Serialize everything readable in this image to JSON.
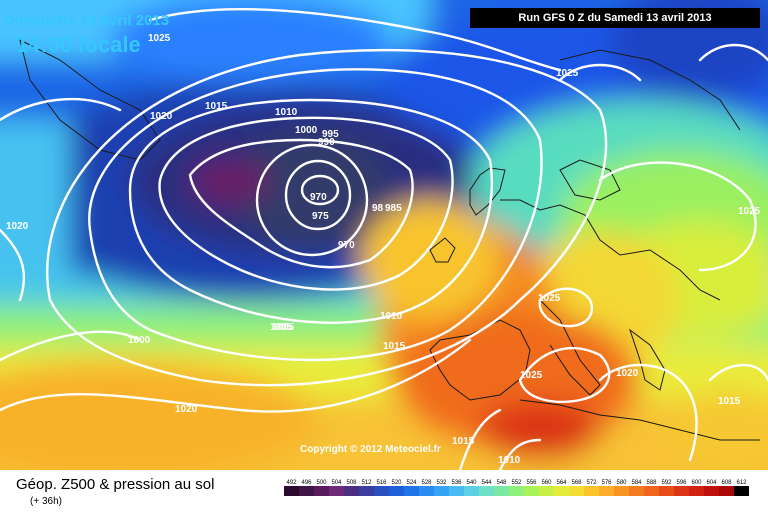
{
  "header": {
    "date": "Dimanche 14 avril 2013",
    "time": "14:00 locale",
    "run": "Run GFS 0 Z du Samedi 13 avril 2013"
  },
  "footer": {
    "title": "Géop. Z500 & pression au sol",
    "subtitle": "(+ 36h)",
    "copyright": "Copyright © 2012 Meteociel.fr"
  },
  "legend": {
    "values": [
      "492",
      "496",
      "500",
      "504",
      "508",
      "512",
      "516",
      "520",
      "524",
      "528",
      "532",
      "536",
      "540",
      "544",
      "548",
      "552",
      "556",
      "560",
      "564",
      "568",
      "572",
      "576",
      "580",
      "584",
      "588",
      "592",
      "596",
      "600",
      "604",
      "608",
      "612"
    ],
    "colors": [
      "#2b0a2e",
      "#3f1548",
      "#5a1a5e",
      "#6e2a76",
      "#4a2f80",
      "#3a3fa0",
      "#2a4fc0",
      "#1f60d8",
      "#1f74e6",
      "#2a8cf0",
      "#36a4f4",
      "#48bcf0",
      "#5cd0e4",
      "#6ee0c8",
      "#7ce8a4",
      "#90f07c",
      "#aaf25a",
      "#c8f044",
      "#e2ec3a",
      "#f4dc34",
      "#fcc42c",
      "#fcac28",
      "#f89424",
      "#f47c20",
      "#f0641c",
      "#e84c18",
      "#dc3414",
      "#d02010",
      "#c0100c",
      "#a80808",
      "#000000"
    ]
  },
  "isobars": [
    "1025",
    "1005",
    "1015",
    "1020",
    "1010",
    "1000",
    "995",
    "990",
    "970",
    "975",
    "970",
    "98",
    "985",
    "1020",
    "1005",
    "1010",
    "1015",
    "1025",
    "1025",
    "1000",
    "1020",
    "1015",
    "1025",
    "1020",
    "1015",
    "1010",
    "1025"
  ]
}
